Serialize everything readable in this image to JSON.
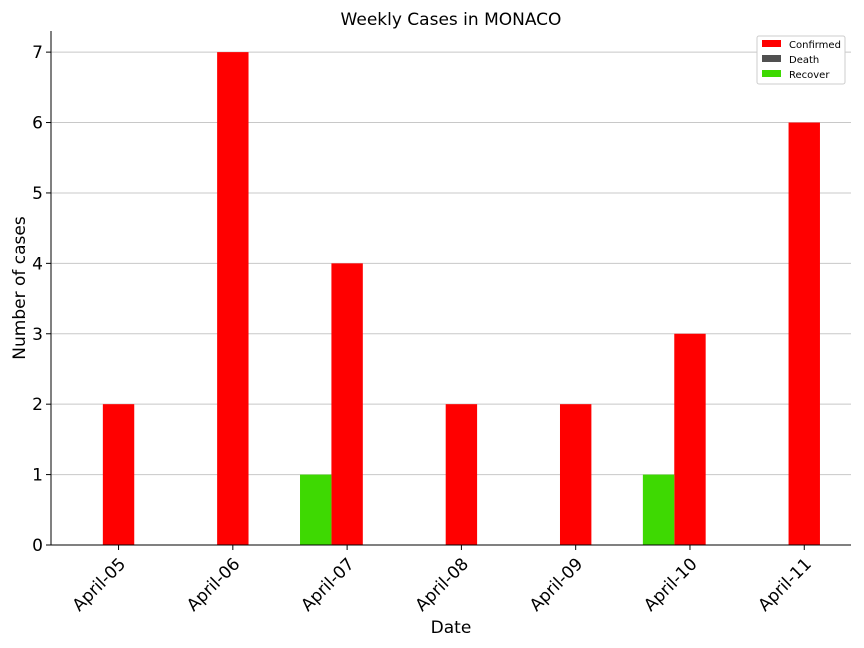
{
  "chart_data": {
    "type": "bar",
    "title": "Weekly Cases in MONACO",
    "xlabel": "Date",
    "ylabel": "Number of cases",
    "categories": [
      "April-05",
      "April-06",
      "April-07",
      "April-08",
      "April-09",
      "April-10",
      "April-11"
    ],
    "series": [
      {
        "name": "Confirmed",
        "color": "#ff0000",
        "values": [
          2,
          7,
          4,
          2,
          2,
          3,
          6
        ]
      },
      {
        "name": "Death",
        "color": "#505050",
        "values": [
          0,
          0,
          0,
          0,
          0,
          0,
          0
        ]
      },
      {
        "name": "Recover",
        "color": "#3ed902",
        "values": [
          0,
          0,
          1,
          0,
          0,
          1,
          0
        ]
      }
    ],
    "ylim": [
      0,
      7.3
    ],
    "yticks": [
      0,
      1,
      2,
      3,
      4,
      5,
      6,
      7
    ],
    "grid": "horizontal",
    "legend": "top-right"
  }
}
